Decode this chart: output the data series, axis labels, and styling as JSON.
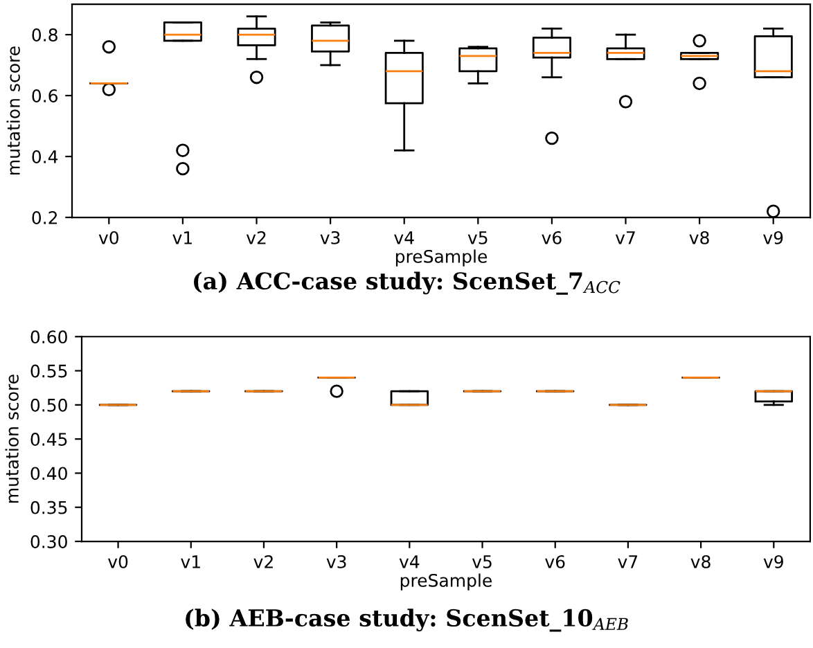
{
  "chart_data": [
    {
      "type": "box",
      "categories": [
        "v0",
        "v1",
        "v2",
        "v3",
        "v4",
        "v5",
        "v6",
        "v7",
        "v8",
        "v9"
      ],
      "xlabel": "preSample",
      "ylabel": "mutation score",
      "ylim": [
        0.2,
        0.9
      ],
      "yticks": [
        0.2,
        0.4,
        0.6,
        0.8
      ],
      "grid": false,
      "color": "#000000",
      "boxes": [
        {
          "low": 0.64,
          "q1": 0.64,
          "median": 0.64,
          "q3": 0.64,
          "high": 0.64,
          "outliers": [
            0.76,
            0.62
          ]
        },
        {
          "low": 0.78,
          "q1": 0.78,
          "median": 0.8,
          "q3": 0.84,
          "high": 0.84,
          "outliers": [
            0.42,
            0.36
          ]
        },
        {
          "low": 0.72,
          "q1": 0.765,
          "median": 0.8,
          "q3": 0.82,
          "high": 0.86,
          "outliers": [
            0.66
          ]
        },
        {
          "low": 0.7,
          "q1": 0.745,
          "median": 0.78,
          "q3": 0.83,
          "high": 0.84
        },
        {
          "low": 0.42,
          "q1": 0.575,
          "median": 0.68,
          "q3": 0.74,
          "high": 0.78
        },
        {
          "low": 0.64,
          "q1": 0.68,
          "median": 0.73,
          "q3": 0.755,
          "high": 0.76
        },
        {
          "low": 0.66,
          "q1": 0.725,
          "median": 0.74,
          "q3": 0.79,
          "high": 0.82,
          "outliers": [
            0.46
          ]
        },
        {
          "low": 0.72,
          "q1": 0.72,
          "median": 0.74,
          "q3": 0.755,
          "high": 0.8,
          "outliers": [
            0.58
          ]
        },
        {
          "low": 0.72,
          "q1": 0.72,
          "median": 0.73,
          "q3": 0.74,
          "high": 0.74,
          "outliers": [
            0.78,
            0.64
          ]
        },
        {
          "low": 0.66,
          "q1": 0.66,
          "median": 0.68,
          "q3": 0.795,
          "high": 0.82,
          "outliers": [
            0.22
          ]
        }
      ],
      "annotations": [
        "(a) ACC-case study: ScenSet_7$_{ACC}$"
      ]
    },
    {
      "type": "box",
      "categories": [
        "v0",
        "v1",
        "v2",
        "v3",
        "v4",
        "v5",
        "v6",
        "v7",
        "v8",
        "v9"
      ],
      "xlabel": "preSample",
      "ylabel": "mutation score",
      "ylim": [
        0.3,
        0.6
      ],
      "yticks": [
        {
          "value": 0.3,
          "label": "0.30"
        },
        0.35,
        {
          "value": 0.4,
          "label": "0.40"
        },
        0.45,
        {
          "value": 0.5,
          "label": "0.50"
        },
        0.55,
        {
          "value": 0.6,
          "label": "0.60"
        }
      ],
      "grid": false,
      "color": "#000000",
      "boxes": [
        {
          "low": 0.5,
          "q1": 0.5,
          "median": 0.5,
          "q3": 0.5,
          "high": 0.5
        },
        {
          "low": 0.52,
          "q1": 0.52,
          "median": 0.52,
          "q3": 0.52,
          "high": 0.52
        },
        {
          "low": 0.52,
          "q1": 0.52,
          "median": 0.52,
          "q3": 0.52,
          "high": 0.52
        },
        {
          "low": 0.54,
          "q1": 0.54,
          "median": 0.54,
          "q3": 0.54,
          "high": 0.54,
          "outliers": [
            0.52
          ]
        },
        {
          "low": 0.5,
          "q1": 0.5,
          "median": 0.5,
          "q3": 0.52,
          "high": 0.52
        },
        {
          "low": 0.52,
          "q1": 0.52,
          "median": 0.52,
          "q3": 0.52,
          "high": 0.52
        },
        {
          "low": 0.52,
          "q1": 0.52,
          "median": 0.52,
          "q3": 0.52,
          "high": 0.52
        },
        {
          "low": 0.5,
          "q1": 0.5,
          "median": 0.5,
          "q3": 0.5,
          "high": 0.5
        },
        {
          "low": 0.54,
          "q1": 0.54,
          "median": 0.54,
          "q3": 0.54,
          "high": 0.54
        },
        {
          "low": 0.5,
          "q1": 0.505,
          "median": 0.52,
          "q3": 0.52,
          "high": 0.52
        }
      ],
      "annotations": [
        "(b) AEB-case study: ScenSet_10$_{AEB}$"
      ]
    }
  ]
}
